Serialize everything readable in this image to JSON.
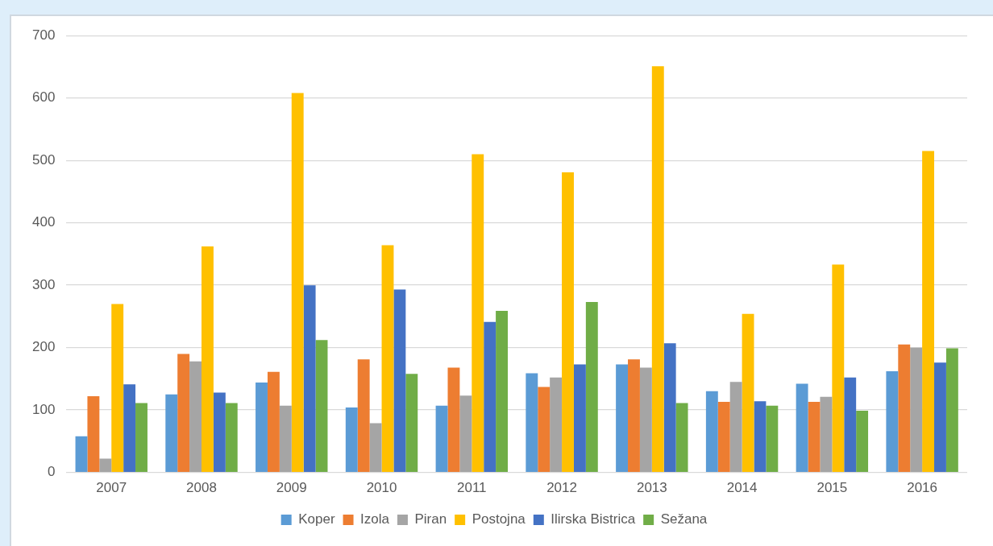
{
  "chart_data": {
    "type": "bar",
    "categories": [
      "2007",
      "2008",
      "2009",
      "2010",
      "2011",
      "2012",
      "2013",
      "2014",
      "2015",
      "2016"
    ],
    "series": [
      {
        "name": "Koper",
        "color": "#5b9bd5",
        "values": [
          58,
          125,
          144,
          104,
          107,
          159,
          173,
          130,
          142,
          162
        ]
      },
      {
        "name": "Izola",
        "color": "#ed7d31",
        "values": [
          122,
          190,
          161,
          181,
          168,
          137,
          181,
          113,
          113,
          205
        ]
      },
      {
        "name": "Piran",
        "color": "#a5a5a5",
        "values": [
          22,
          178,
          107,
          79,
          123,
          152,
          168,
          145,
          121,
          200
        ]
      },
      {
        "name": "Postojna",
        "color": "#ffc000",
        "values": [
          270,
          362,
          608,
          364,
          510,
          481,
          651,
          254,
          333,
          515
        ]
      },
      {
        "name": "Ilirska Bistrica",
        "color": "#4472c4",
        "values": [
          141,
          128,
          300,
          293,
          241,
          173,
          207,
          114,
          152,
          176
        ]
      },
      {
        "name": "Sežana",
        "color": "#70ad47",
        "values": [
          111,
          111,
          212,
          158,
          259,
          273,
          111,
          107,
          99,
          199
        ]
      }
    ],
    "ylim": [
      0,
      700
    ],
    "yticks": [
      0,
      100,
      200,
      300,
      400,
      500,
      600,
      700
    ],
    "grid": "y",
    "legend": "bottom"
  }
}
